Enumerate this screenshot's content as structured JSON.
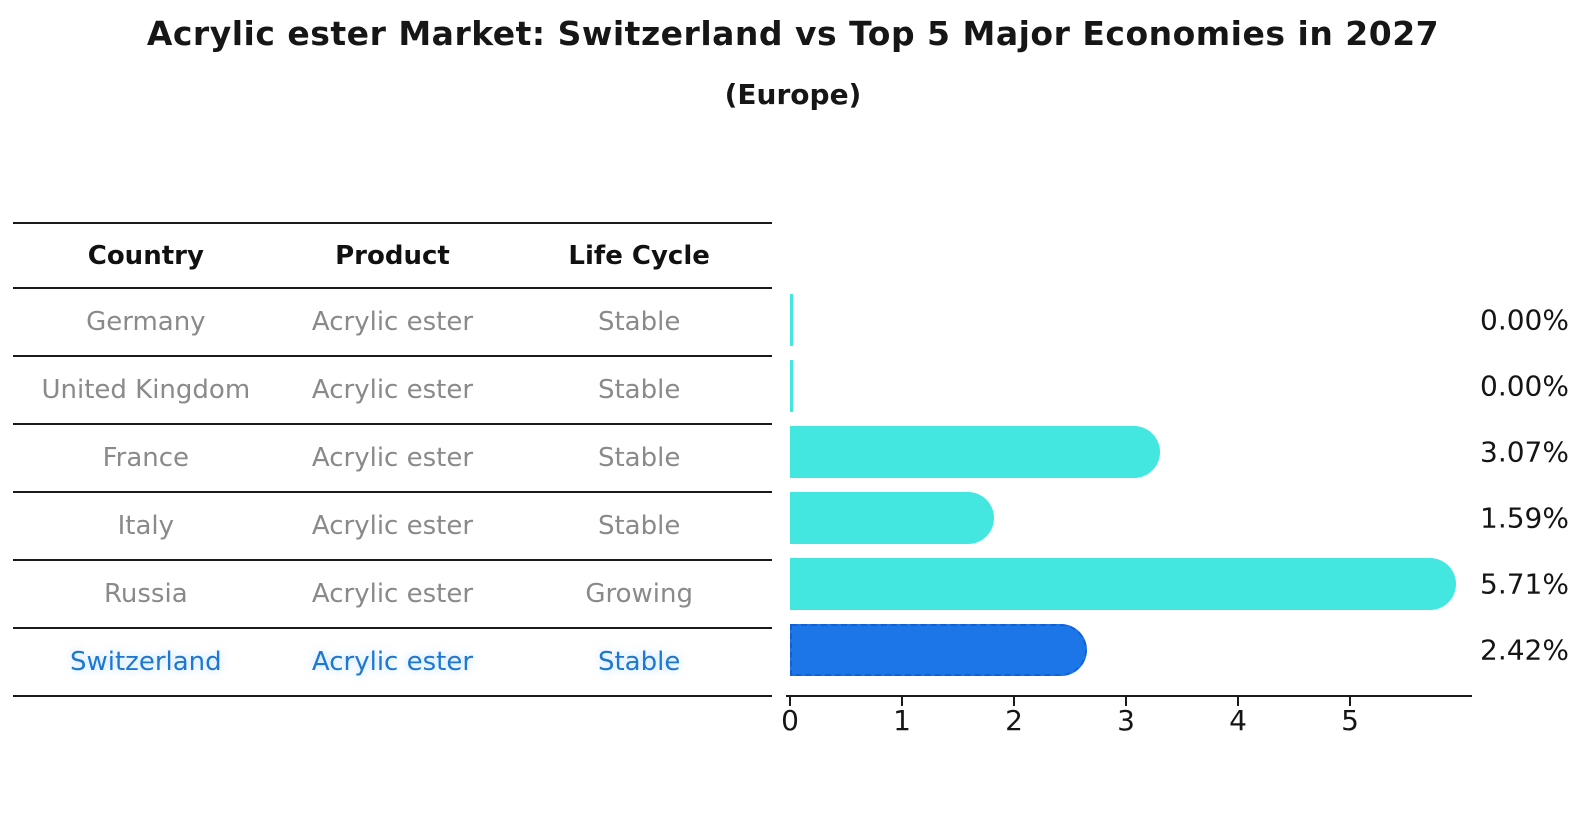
{
  "title": "Acrylic ester Market: Switzerland vs Top 5 Major Economies in 2027",
  "subtitle": "(Europe)",
  "table": {
    "headers": [
      "Country",
      "Product",
      "Life Cycle"
    ],
    "rows": [
      {
        "country": "Germany",
        "product": "Acrylic ester",
        "life_cycle": "Stable",
        "highlight": false
      },
      {
        "country": "United Kingdom",
        "product": "Acrylic ester",
        "life_cycle": "Stable",
        "highlight": false
      },
      {
        "country": "France",
        "product": "Acrylic ester",
        "life_cycle": "Stable",
        "highlight": false
      },
      {
        "country": "Italy",
        "product": "Acrylic ester",
        "life_cycle": "Stable",
        "highlight": false
      },
      {
        "country": "Russia",
        "product": "Acrylic ester",
        "life_cycle": "Growing",
        "highlight": false
      },
      {
        "country": "Switzerland",
        "product": "Acrylic ester",
        "life_cycle": "Stable",
        "highlight": true
      }
    ]
  },
  "chart_data": {
    "type": "bar",
    "orientation": "horizontal",
    "title": "Acrylic ester Market: Switzerland vs Top 5 Major Economies in 2027",
    "subtitle": "(Europe)",
    "categories": [
      "Germany",
      "United Kingdom",
      "France",
      "Italy",
      "Russia",
      "Switzerland"
    ],
    "values": [
      0.0,
      0.0,
      3.07,
      1.59,
      5.71,
      2.42
    ],
    "value_labels": [
      "0.00%",
      "0.00%",
      "3.07%",
      "1.59%",
      "5.71%",
      "2.42%"
    ],
    "x_ticks": [
      "0",
      "1",
      "2",
      "3",
      "4",
      "5"
    ],
    "xlim": [
      0,
      6.05
    ],
    "grid": false,
    "legend": false,
    "bar_color": "#43e7e0",
    "highlight_color": "#1c76e8",
    "highlight_border_color": "#0e62d8",
    "highlight_index": 5,
    "highlight_category": "Switzerland"
  }
}
